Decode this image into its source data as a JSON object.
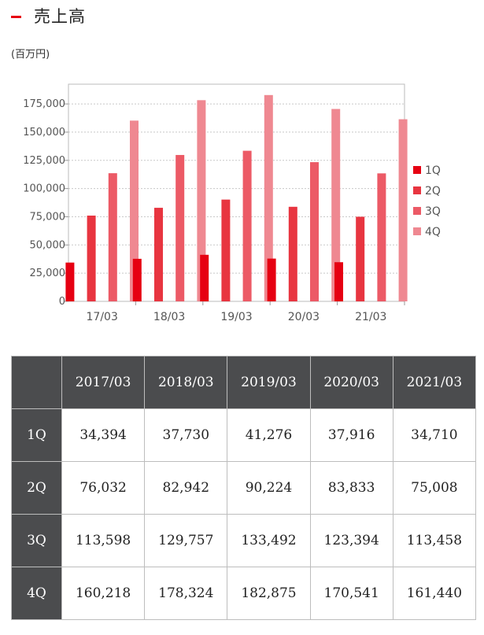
{
  "heading": {
    "title": "売上高",
    "unit": "(百万円)"
  },
  "colors": {
    "accent": "#e60012",
    "q1": "#e60012",
    "q2": "#e83540",
    "q3": "#ec5a66",
    "q4": "#ef8891",
    "table_header_bg": "#4b4c4e"
  },
  "chart_data": {
    "type": "bar",
    "categories": [
      "17/03",
      "18/03",
      "19/03",
      "20/03",
      "21/03"
    ],
    "series": [
      {
        "name": "1Q",
        "values": [
          34394,
          37730,
          41276,
          37916,
          34710
        ]
      },
      {
        "name": "2Q",
        "values": [
          76032,
          82942,
          90224,
          83833,
          75008
        ]
      },
      {
        "name": "3Q",
        "values": [
          113598,
          129757,
          133492,
          123394,
          113458
        ]
      },
      {
        "name": "4Q",
        "values": [
          160218,
          178324,
          182875,
          170541,
          161440
        ]
      }
    ],
    "yticks": [
      "0",
      "25,000",
      "50,000",
      "75,000",
      "100,000",
      "125,000",
      "150,000",
      "175,000"
    ],
    "ylim": [
      0,
      192500
    ],
    "title": "",
    "xlabel": "",
    "ylabel": "",
    "grid": true,
    "legend": "right"
  },
  "table": {
    "corner": "",
    "headers": [
      "2017/03",
      "2018/03",
      "2019/03",
      "2020/03",
      "2021/03"
    ],
    "rows": [
      {
        "label": "1Q",
        "cells": [
          "34,394",
          "37,730",
          "41,276",
          "37,916",
          "34,710"
        ]
      },
      {
        "label": "2Q",
        "cells": [
          "76,032",
          "82,942",
          "90,224",
          "83,833",
          "75,008"
        ]
      },
      {
        "label": "3Q",
        "cells": [
          "113,598",
          "129,757",
          "133,492",
          "123,394",
          "113,458"
        ]
      },
      {
        "label": "4Q",
        "cells": [
          "160,218",
          "178,324",
          "182,875",
          "170,541",
          "161,440"
        ]
      }
    ]
  }
}
